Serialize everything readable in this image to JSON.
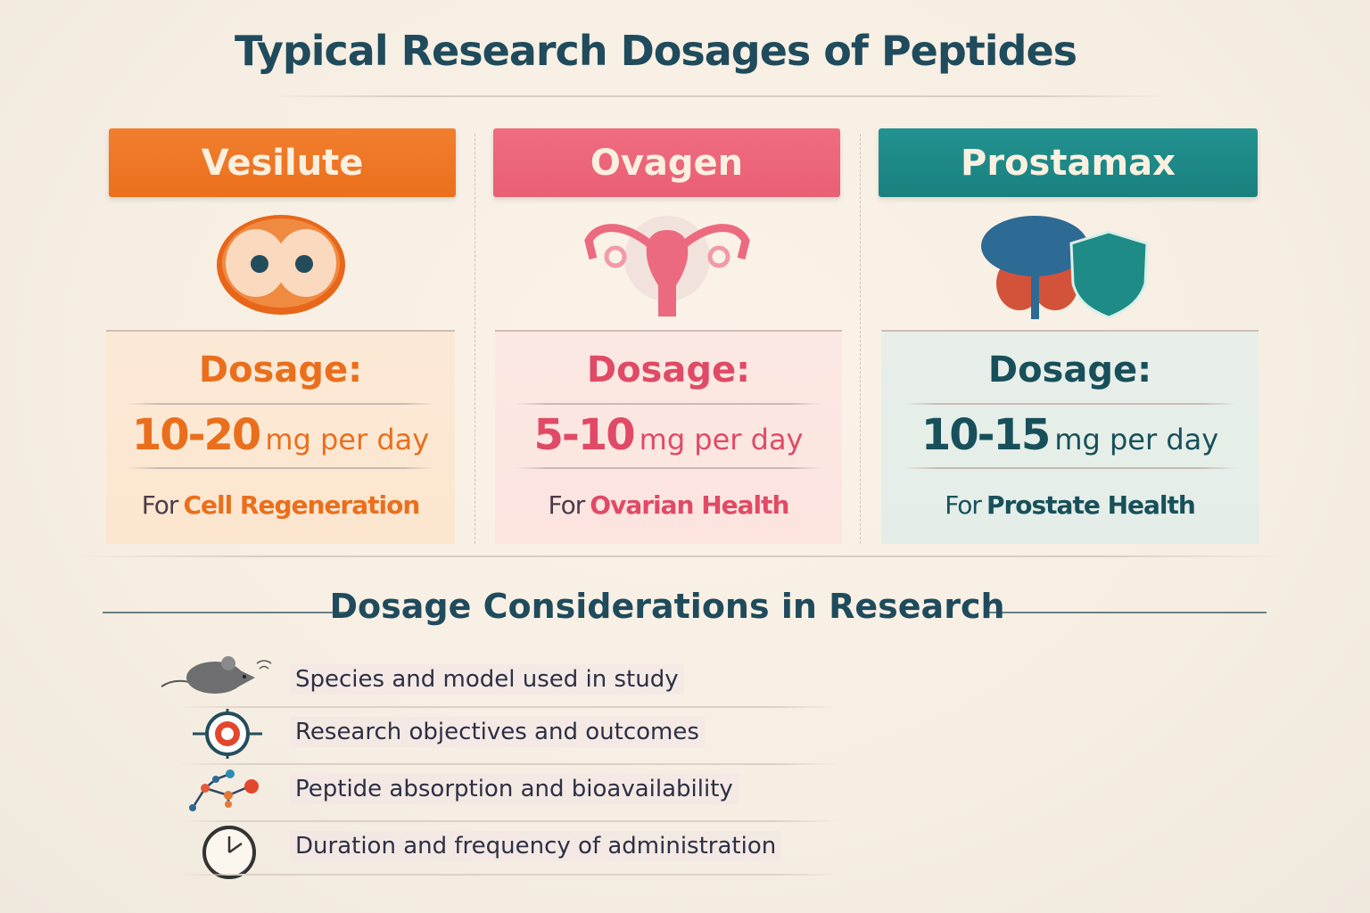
{
  "title": "Typical Research Dosages of Peptides",
  "colors": {
    "vesilute": "#ee7424",
    "ovagen": "#ea5f74",
    "prostamax": "#1f8b86",
    "title": "#1f4b5c"
  },
  "cards": [
    {
      "name": "Vesilute",
      "icon": "bladder-organ-icon",
      "dosage_label": "Dosage:",
      "range": "10-20",
      "unit": "mg per day",
      "for_prefix": "For",
      "purpose": "Cell Regeneration"
    },
    {
      "name": "Ovagen",
      "icon": "uterus-ovaries-icon",
      "dosage_label": "Dosage:",
      "range": "5-10",
      "unit": "mg per day",
      "for_prefix": "For",
      "purpose": "Ovarian Health"
    },
    {
      "name": "Prostamax",
      "icon": "prostate-shield-icon",
      "dosage_label": "Dosage:",
      "range": "10-15",
      "unit": "mg per day",
      "for_prefix": "For",
      "purpose": "Prostate Health"
    }
  ],
  "considerations": {
    "title": "Dosage Considerations  in Research",
    "items": [
      {
        "icon": "mouse-icon",
        "text": "Species and model used in study"
      },
      {
        "icon": "target-icon",
        "text": "Research objectives and outcomes"
      },
      {
        "icon": "molecule-icon",
        "text": "Peptide absorption and bioavailability"
      },
      {
        "icon": "clock-icon",
        "text": "Duration and frequency of administration"
      }
    ]
  }
}
